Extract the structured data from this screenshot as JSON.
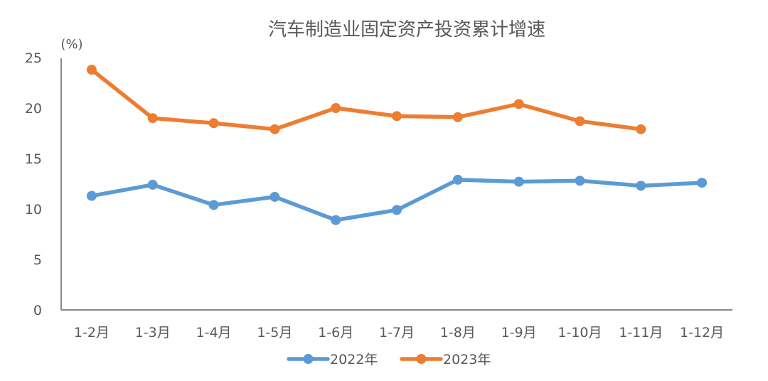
{
  "chart_data": {
    "type": "line",
    "title": "汽车制造业固定资产投资累计增速",
    "ylabel": "(%)",
    "xlabel": "",
    "ylim": [
      0,
      25
    ],
    "yticks": [
      0,
      5,
      10,
      15,
      20,
      25
    ],
    "grid": false,
    "legend_position": "bottom",
    "categories": [
      "1-2月",
      "1-3月",
      "1-4月",
      "1-5月",
      "1-6月",
      "1-7月",
      "1-8月",
      "1-9月",
      "1-10月",
      "1-11月",
      "1-12月"
    ],
    "series": [
      {
        "name": "2022年",
        "color": "#5B9BD5",
        "values": [
          11.3,
          12.4,
          10.4,
          11.2,
          8.9,
          9.9,
          12.9,
          12.7,
          12.8,
          12.3,
          12.6
        ]
      },
      {
        "name": "2023年",
        "color": "#ED7D31",
        "values": [
          23.8,
          19.0,
          18.5,
          17.9,
          20.0,
          19.2,
          19.1,
          20.4,
          18.7,
          17.9,
          null
        ]
      }
    ]
  },
  "colors": {
    "axis": "#898989",
    "text": "#595959",
    "series_2022": "#5B9BD5",
    "series_2023": "#ED7D31"
  }
}
